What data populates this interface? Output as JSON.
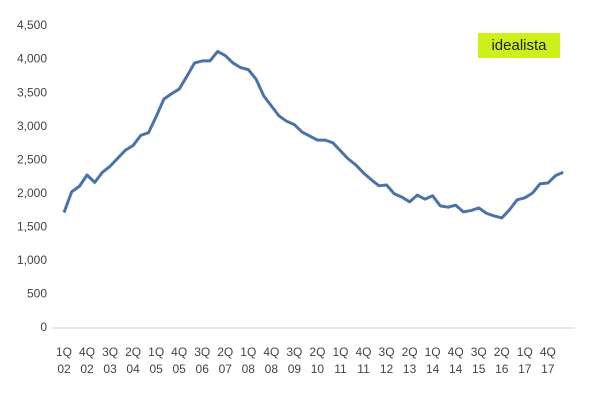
{
  "chart_data": {
    "type": "line",
    "annotation": "idealista",
    "categories": [
      "1Q 02",
      null,
      null,
      "4Q 02",
      null,
      null,
      "3Q 03",
      null,
      null,
      "2Q 04",
      null,
      null,
      "1Q 05",
      null,
      null,
      "4Q 05",
      null,
      null,
      "3Q 06",
      null,
      null,
      "2Q 07",
      null,
      null,
      "1Q 08",
      null,
      null,
      "4Q 08",
      null,
      null,
      "3Q 09",
      null,
      null,
      "2Q 10",
      null,
      null,
      "1Q 11",
      null,
      null,
      "4Q 11",
      null,
      null,
      "3Q 12",
      null,
      null,
      "2Q 13",
      null,
      null,
      "1Q 14",
      null,
      null,
      "4Q 14",
      null,
      null,
      "3Q 15",
      null,
      null,
      "2Q 16",
      null,
      null,
      "1Q 17",
      null,
      null,
      "4Q 17",
      null,
      null
    ],
    "values": [
      1720,
      2030,
      2110,
      2280,
      2170,
      2320,
      2410,
      2530,
      2650,
      2720,
      2870,
      2910,
      3150,
      3410,
      3490,
      3560,
      3750,
      3950,
      3980,
      3980,
      4120,
      4060,
      3950,
      3880,
      3850,
      3710,
      3460,
      3310,
      3160,
      3080,
      3030,
      2920,
      2860,
      2800,
      2800,
      2760,
      2640,
      2520,
      2430,
      2310,
      2210,
      2120,
      2130,
      2000,
      1950,
      1880,
      1980,
      1920,
      1970,
      1820,
      1800,
      1830,
      1730,
      1750,
      1790,
      1710,
      1670,
      1640,
      1760,
      1910,
      1940,
      2010,
      2150,
      2160,
      2270,
      2320
    ],
    "color": "#4a74a8",
    "ylim": [
      0,
      4500
    ],
    "yticks": [
      0,
      500,
      {
        "value": 1000,
        "label": "1,000"
      },
      {
        "value": 1500,
        "label": "1,500"
      },
      {
        "value": 2000,
        "label": "2,000"
      },
      {
        "value": 2500,
        "label": "2,500"
      },
      {
        "value": 3000,
        "label": "3,000"
      },
      {
        "value": 3500,
        "label": "3,500"
      },
      {
        "value": 4000,
        "label": "4,000"
      },
      {
        "value": 4500,
        "label": "4,500"
      }
    ],
    "grid": false
  }
}
